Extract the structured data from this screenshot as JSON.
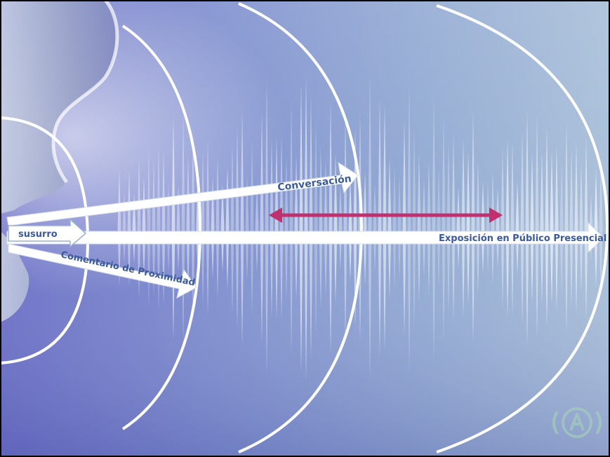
{
  "labels": {
    "whisper": "susurro",
    "conversation": "Conversación",
    "proximity": "Comentario de Proximidad",
    "presentation": "Exposición en Público Presencial"
  },
  "colors": {
    "label_text": "#3a5a9c",
    "range_arrow": "#c0306e",
    "background_left": "#6b72c4",
    "background_right": "#a9bed8"
  },
  "icons": {
    "logo": "broadcast-a-logo-icon"
  }
}
